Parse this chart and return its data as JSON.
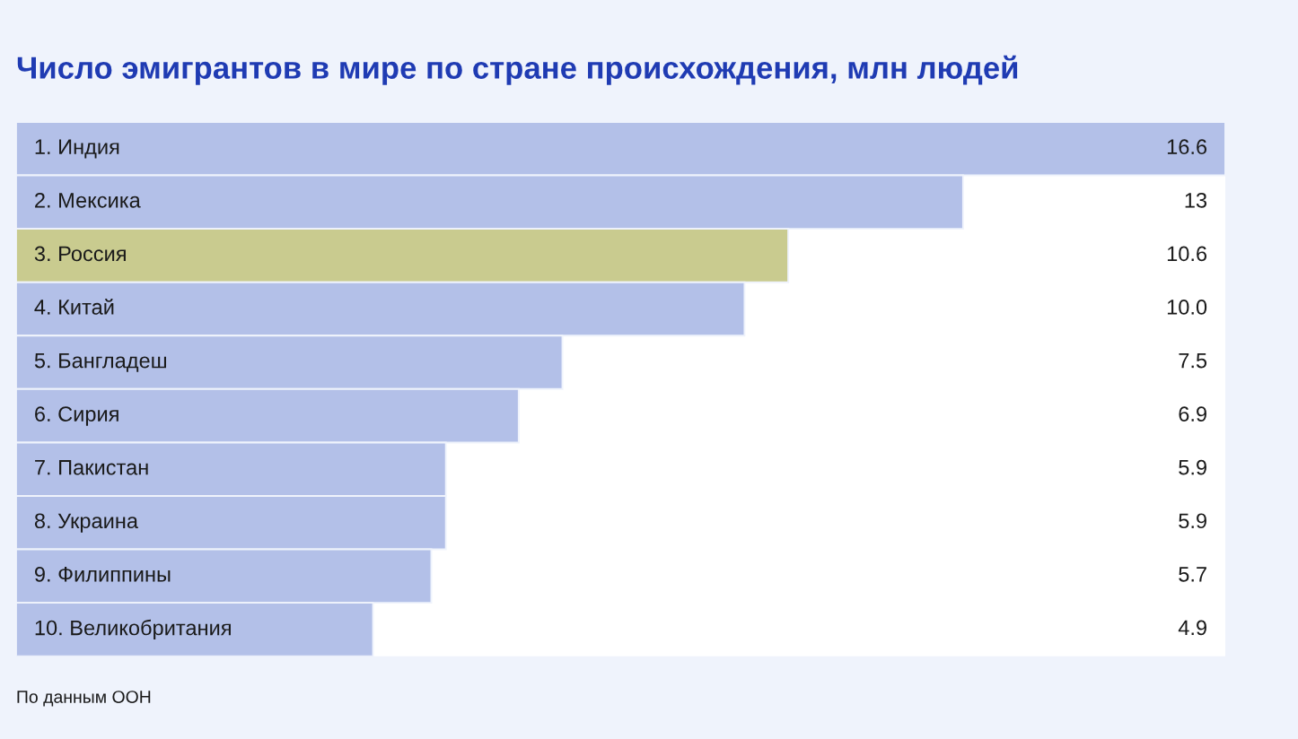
{
  "chart_data": {
    "type": "bar",
    "orientation": "horizontal",
    "title": "Число эмигрантов в мире по стране происхождения, млн людей",
    "categories": [
      "1. Индия",
      "2. Мексика",
      "3. Россия",
      "4. Китай",
      "5. Бангладеш",
      "6. Сирия",
      "7. Пакистан",
      "8. Украина",
      "9. Филиппины",
      "10. Великобритания"
    ],
    "values": [
      16.6,
      13,
      10.6,
      10.0,
      7.5,
      6.9,
      5.9,
      5.9,
      5.7,
      4.9
    ],
    "colors": [
      "#b3c0e8",
      "#b3c0e8",
      "#c9cb8f",
      "#b3c0e8",
      "#b3c0e8",
      "#b3c0e8",
      "#b3c0e8",
      "#b3c0e8",
      "#b3c0e8",
      "#b3c0e8"
    ],
    "value_labels": [
      "16.6",
      "13",
      "10.6",
      "10.0",
      "7.5",
      "6.9",
      "5.9",
      "5.9",
      "5.7",
      "4.9"
    ],
    "xlim": [
      0,
      16.6
    ],
    "tick_labels": "y",
    "annotations": [
      "По данным ООН"
    ]
  }
}
